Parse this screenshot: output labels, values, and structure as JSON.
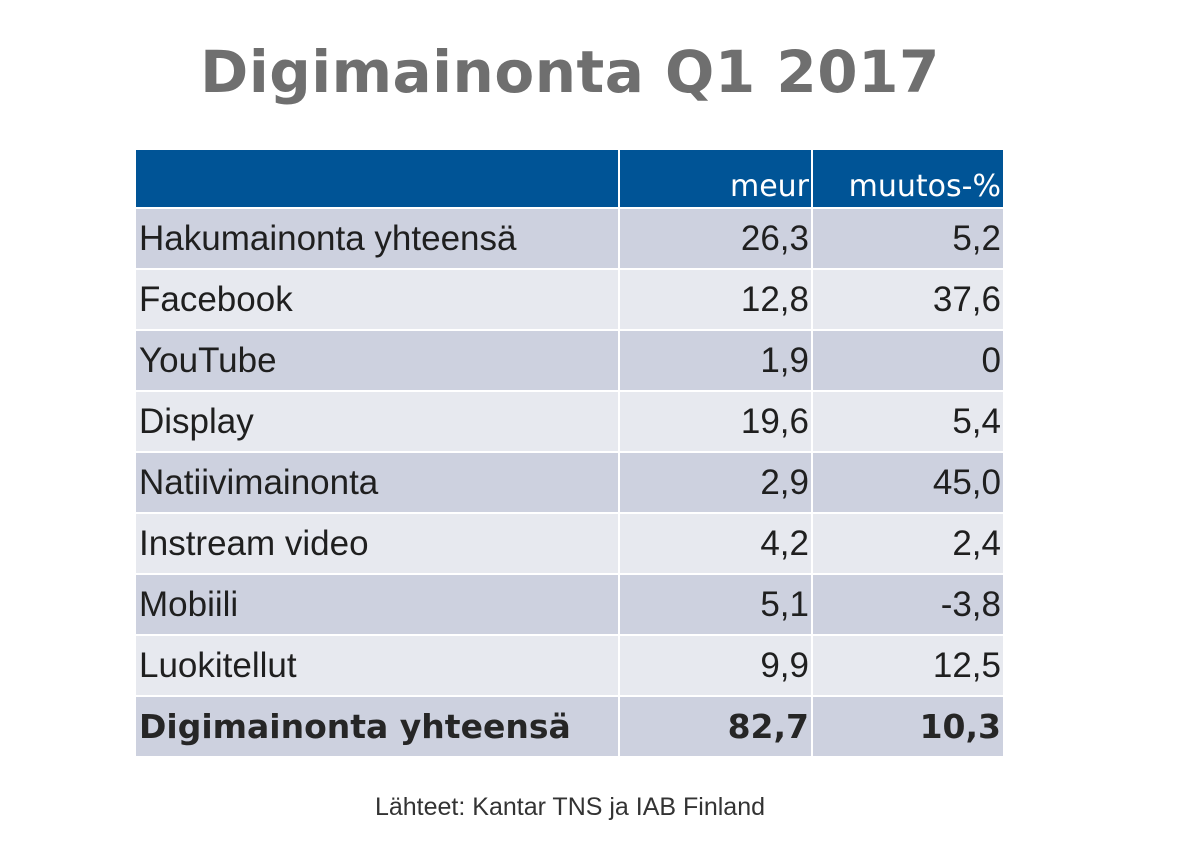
{
  "chart_data": {
    "type": "table",
    "title": "Digimainonta Q1 2017",
    "columns": [
      "",
      "meur",
      "muutos-%"
    ],
    "rows": [
      {
        "label": "Hakumainonta yhteensä",
        "meur": "26,3",
        "muutos": "5,2"
      },
      {
        "label": "Facebook",
        "meur": "12,8",
        "muutos": "37,6"
      },
      {
        "label": "YouTube",
        "meur": "1,9",
        "muutos": "0"
      },
      {
        "label": "Display",
        "meur": "19,6",
        "muutos": "5,4"
      },
      {
        "label": "Natiivimainonta",
        "meur": "2,9",
        "muutos": "45,0"
      },
      {
        "label": "Instream video",
        "meur": "4,2",
        "muutos": "2,4"
      },
      {
        "label": "Mobiili",
        "meur": "5,1",
        "muutos": "-3,8"
      },
      {
        "label": "Luokitellut",
        "meur": "9,9",
        "muutos": "12,5"
      }
    ],
    "total": {
      "label": "Digimainonta yhteensä",
      "meur": "82,7",
      "muutos": "10,3"
    },
    "source": "Lähteet: Kantar TNS ja IAB Finland"
  },
  "colors": {
    "header_bg": "#005496",
    "row_dark": "#cdd1df",
    "row_light": "#e7e9ef",
    "title": "#6f6f6f"
  }
}
